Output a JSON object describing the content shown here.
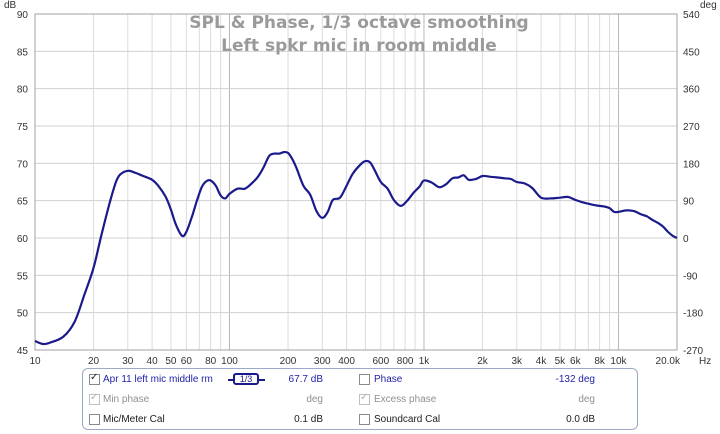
{
  "chart_data": {
    "type": "line",
    "title": "SPL & Phase, 1/3 octave smoothing",
    "subtitle": "Left spkr mic in room middle",
    "x_unit": "Hz",
    "y_unit_left": "dB",
    "y_unit_right": "deg",
    "x_scale": "log",
    "xlim": [
      10,
      20000
    ],
    "ylim": [
      45,
      90
    ],
    "ylim_right": [
      -270,
      540
    ],
    "grid": true,
    "x_tick_labels": [
      {
        "v": 10,
        "t": "10"
      },
      {
        "v": 20,
        "t": "20"
      },
      {
        "v": 30,
        "t": "30"
      },
      {
        "v": 40,
        "t": "40"
      },
      {
        "v": 50,
        "t": "50"
      },
      {
        "v": 60,
        "t": "60"
      },
      {
        "v": 80,
        "t": "80"
      },
      {
        "v": 100,
        "t": "100"
      },
      {
        "v": 200,
        "t": "200"
      },
      {
        "v": 300,
        "t": "300"
      },
      {
        "v": 400,
        "t": "400"
      },
      {
        "v": 600,
        "t": "600"
      },
      {
        "v": 800,
        "t": "800"
      },
      {
        "v": 1000,
        "t": "1k"
      },
      {
        "v": 2000,
        "t": "2k"
      },
      {
        "v": 3000,
        "t": "3k"
      },
      {
        "v": 4000,
        "t": "4k"
      },
      {
        "v": 5000,
        "t": "5k"
      },
      {
        "v": 6000,
        "t": "6k"
      },
      {
        "v": 8000,
        "t": "8k"
      },
      {
        "v": 10000,
        "t": "10k"
      },
      {
        "v": 20000,
        "t": "20.0k"
      }
    ],
    "y_ticks_left": [
      45,
      50,
      55,
      60,
      65,
      70,
      75,
      80,
      85,
      90
    ],
    "y_ticks_right": [
      -270,
      -180,
      -90,
      0,
      90,
      180,
      270,
      360,
      450,
      540
    ],
    "series": [
      {
        "name": "Apr 11 left mic middle rm",
        "color": "#1a1a8c",
        "x": [
          10,
          11,
          12,
          14,
          16,
          18,
          20,
          22,
          25,
          27,
          30,
          33,
          36,
          40,
          43,
          47,
          50,
          53,
          57,
          60,
          64,
          68,
          72,
          76,
          80,
          85,
          90,
          95,
          100,
          110,
          120,
          130,
          140,
          150,
          160,
          170,
          180,
          190,
          200,
          210,
          220,
          240,
          260,
          280,
          300,
          320,
          340,
          370,
          400,
          430,
          470,
          500,
          530,
          560,
          600,
          650,
          700,
          760,
          820,
          880,
          950,
          1000,
          1100,
          1200,
          1300,
          1400,
          1500,
          1600,
          1700,
          1850,
          2000,
          2200,
          2400,
          2600,
          2800,
          3000,
          3300,
          3600,
          4000,
          4500,
          5000,
          5500,
          6000,
          6500,
          7000,
          7500,
          8000,
          8500,
          9000,
          9500,
          10000,
          11000,
          12000,
          13000,
          14000,
          15000,
          16000,
          17000,
          18000,
          19000,
          20000
        ],
        "y": [
          46.2,
          45.8,
          46.0,
          46.8,
          48.8,
          52.5,
          56.0,
          60.5,
          66.0,
          68.3,
          69.0,
          68.7,
          68.3,
          67.8,
          67.0,
          65.5,
          63.8,
          61.8,
          60.3,
          60.8,
          62.8,
          65.0,
          66.8,
          67.6,
          67.7,
          67.0,
          65.7,
          65.3,
          65.9,
          66.6,
          66.6,
          67.3,
          68.2,
          69.5,
          71.0,
          71.3,
          71.3,
          71.5,
          71.4,
          70.6,
          69.5,
          67.0,
          65.8,
          63.6,
          62.7,
          63.5,
          65.1,
          65.4,
          67.0,
          68.6,
          69.8,
          70.3,
          70.1,
          69.0,
          67.5,
          66.6,
          65.1,
          64.3,
          65.0,
          66.0,
          66.9,
          67.7,
          67.4,
          66.8,
          67.2,
          68.0,
          68.1,
          68.4,
          67.8,
          67.9,
          68.3,
          68.2,
          68.1,
          68.0,
          67.9,
          67.5,
          67.3,
          66.7,
          65.4,
          65.3,
          65.4,
          65.5,
          65.1,
          64.8,
          64.6,
          64.4,
          64.3,
          64.2,
          64.0,
          63.5,
          63.5,
          63.7,
          63.6,
          63.2,
          62.9,
          62.4,
          62.0,
          61.5,
          60.8,
          60.3,
          60.0
        ]
      }
    ]
  },
  "legend": {
    "rows": [
      {
        "checked": true,
        "label": "Apr 11 left mic middle rm",
        "smoothing": "1/3",
        "value": "67.7 dB",
        "right_checked": false,
        "right_label": "Phase",
        "right_value": "-132 deg"
      },
      {
        "checked": true,
        "label": "Min phase",
        "value": "deg",
        "right_checked": true,
        "right_label": "Excess phase",
        "right_value": "deg"
      },
      {
        "checked": false,
        "label": "Mic/Meter Cal",
        "value": "0.1 dB",
        "right_checked": false,
        "right_label": "Soundcard Cal",
        "right_value": "0.0 dB"
      }
    ]
  }
}
